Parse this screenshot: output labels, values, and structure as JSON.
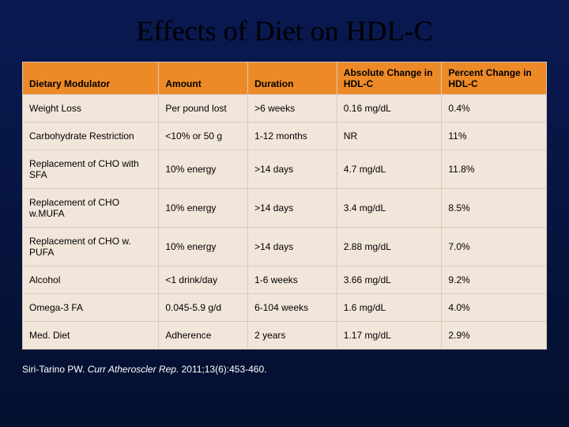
{
  "title": "Effects of Diet on HDL-C",
  "table": {
    "columns": [
      "Dietary Modulator",
      "Amount",
      "Duration",
      "Absolute Change in HDL-C",
      "Percent Change in HDL-C"
    ],
    "rows": [
      [
        "Weight Loss",
        "Per pound lost",
        ">6 weeks",
        "0.16 mg/dL",
        "0.4%"
      ],
      [
        "Carbohydrate Restriction",
        "<10% or 50 g",
        "1-12 months",
        "NR",
        "11%"
      ],
      [
        "Replacement of CHO with SFA",
        "10% energy",
        ">14 days",
        "4.7 mg/dL",
        "11.8%"
      ],
      [
        "Replacement of CHO w.MUFA",
        "10% energy",
        ">14 days",
        "3.4 mg/dL",
        "8.5%"
      ],
      [
        "Replacement of CHO w. PUFA",
        "10% energy",
        ">14 days",
        "2.88 mg/dL",
        "7.0%"
      ],
      [
        "Alcohol",
        "<1 drink/day",
        "1-6 weeks",
        "3.66 mg/dL",
        "9.2%"
      ],
      [
        "Omega-3 FA",
        "0.045-5.9 g/d",
        "6-104 weeks",
        "1.6 mg/dL",
        "4.0%"
      ],
      [
        "Med. Diet",
        "Adherence",
        "2 years",
        "1.17 mg/dL",
        "2.9%"
      ]
    ],
    "header_bg": "#ed8a27",
    "cell_bg": "#f2e6db",
    "border_color": "#d9c9ba",
    "font_size": 12,
    "col_widths_pct": [
      26,
      17,
      17,
      20,
      20
    ]
  },
  "citation": {
    "author": "Siri-Tarino PW. ",
    "journal": "Curr Atheroscler Rep.",
    "rest": " 2011;13(6):453-460."
  },
  "background_gradient": [
    "#0a1952",
    "#04102e"
  ]
}
